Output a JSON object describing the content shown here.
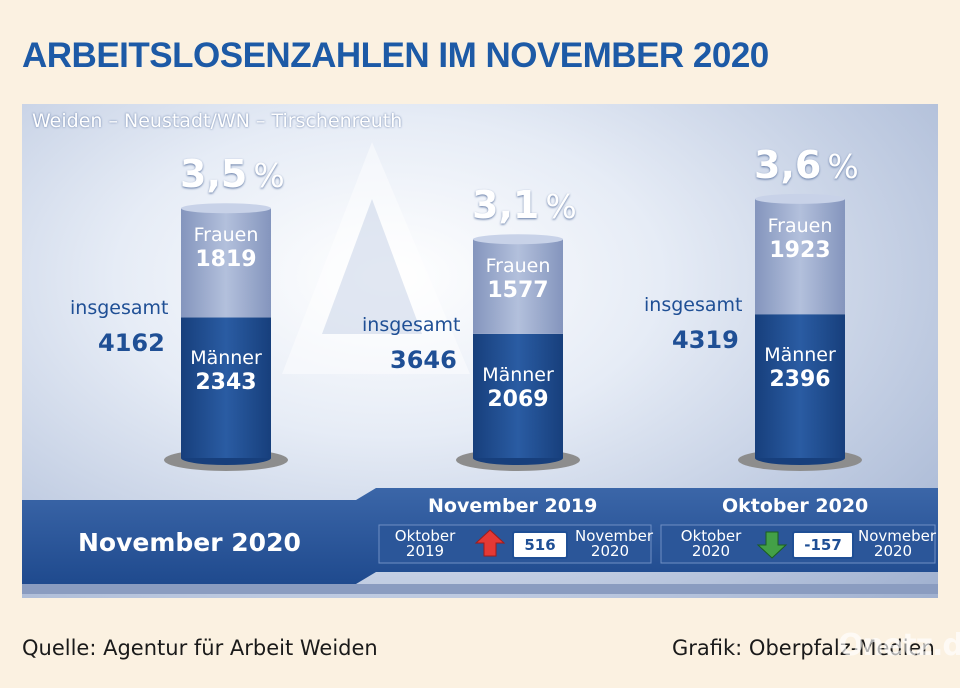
{
  "title": "ARBEITSLOSENZAHLEN IM NOVEMBER 2020",
  "subtitle": "Weiden – Neustadt/WN – Tirschenreuth",
  "pct_sign": "%",
  "insgesamt_label": "insgesamt",
  "frauen_label": "Frauen",
  "maenner_label": "Männer",
  "chart_data": {
    "type": "bar",
    "stacked": true,
    "categories": [
      "",
      "",
      ""
    ],
    "series": [
      {
        "name": "Männer",
        "values": [
          2343,
          2069,
          2396
        ]
      },
      {
        "name": "Frauen",
        "values": [
          1819,
          1577,
          1923
        ]
      }
    ],
    "totals": [
      4162,
      3646,
      4319
    ],
    "rates": [
      "3,5",
      "3,1",
      "3,6"
    ]
  },
  "colors": {
    "title": "#1d5aa6",
    "dark_blue": "#1f4f95",
    "light_blue": "#a4b3d3",
    "up_arrow": "#e53935",
    "down_arrow": "#43a047"
  },
  "band": {
    "main_label": "November 2020",
    "comparisons": [
      {
        "title": "November 2019",
        "from": "Oktober 2019",
        "from_line1": "Oktober",
        "from_line2": "2019",
        "delta": "516",
        "direction": "up",
        "arrow_icon": "arrow-up-icon",
        "to_line1": "November",
        "to_line2": "2020"
      },
      {
        "title": "Oktober 2020",
        "from_line1": "Oktober",
        "from_line2": "2020",
        "delta": "-157",
        "direction": "down",
        "arrow_icon": "arrow-down-icon",
        "to_line1": "Novmeber",
        "to_line2": "2020"
      }
    ]
  },
  "footer": {
    "source": "Quelle: Agentur für Arbeit Weiden",
    "credit": "Grafik: Oberpfalz-Medien",
    "watermark": "Onetz.de"
  }
}
